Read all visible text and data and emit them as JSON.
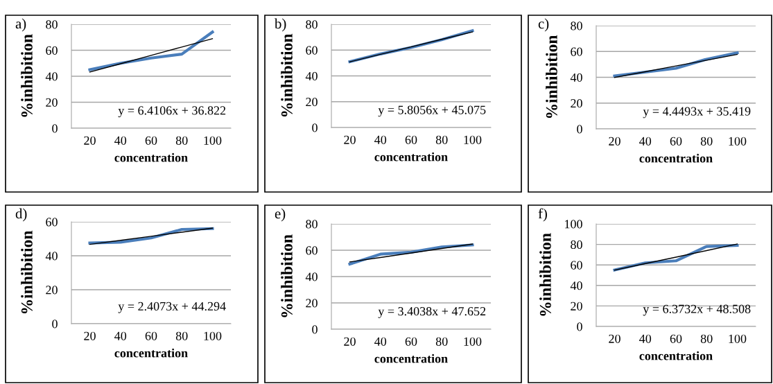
{
  "chart_data": [
    {
      "type": "line",
      "categories": [
        "20",
        "40",
        "60",
        "80",
        "100"
      ],
      "xlabel": "concentration",
      "ylabel": "%inhibition",
      "ylim": [
        0,
        80
      ],
      "yticks": [
        0,
        20,
        40,
        60,
        80
      ],
      "grid": "y",
      "annotations": [
        "a)",
        "y = 6.4106x + 36.822"
      ],
      "series": [
        {
          "color": "#4a7ebb",
          "values": [
            45,
            50,
            54,
            57,
            74
          ]
        },
        {
          "color": "#000000",
          "values": [
            43.2,
            49.6,
            56.1,
            62.5,
            68.9
          ]
        }
      ]
    },
    {
      "type": "line",
      "categories": [
        "20",
        "40",
        "60",
        "80",
        "100"
      ],
      "xlabel": "concentration",
      "ylabel": "%inhibition",
      "ylim": [
        0,
        80
      ],
      "yticks": [
        0,
        20,
        40,
        60,
        80
      ],
      "grid": "y",
      "annotations": [
        "b)",
        "y = 5.8056x + 45.075"
      ],
      "series": [
        {
          "color": "#4a7ebb",
          "values": [
            51,
            57,
            62,
            68,
            75
          ]
        },
        {
          "color": "#000000",
          "values": [
            50.9,
            56.7,
            62.5,
            68.3,
            74.1
          ]
        }
      ]
    },
    {
      "type": "line",
      "categories": [
        "20",
        "40",
        "60",
        "80",
        "100"
      ],
      "xlabel": "concentration",
      "ylabel": "%inhibition",
      "ylim": [
        0,
        80
      ],
      "yticks": [
        0,
        20,
        40,
        60,
        80
      ],
      "grid": "y",
      "annotations": [
        "c)",
        "y = 4.4493x + 35.419"
      ],
      "series": [
        {
          "color": "#4a7ebb",
          "values": [
            41,
            44,
            47,
            54,
            59
          ]
        },
        {
          "color": "#000000",
          "values": [
            39.9,
            44.3,
            48.8,
            53.2,
            57.7
          ]
        }
      ]
    },
    {
      "type": "line",
      "categories": [
        "20",
        "40",
        "60",
        "80",
        "100"
      ],
      "xlabel": "concentration",
      "ylabel": "%inhibition",
      "ylim": [
        0,
        60
      ],
      "yticks": [
        0,
        20,
        40,
        60
      ],
      "grid": "y",
      "annotations": [
        "d)",
        "y = 2.4073x + 44.294"
      ],
      "series": [
        {
          "color": "#4a7ebb",
          "values": [
            47.5,
            48,
            50.5,
            55.5,
            56
          ]
        },
        {
          "color": "#000000",
          "values": [
            46.7,
            49.1,
            51.5,
            53.9,
            56.3
          ]
        }
      ]
    },
    {
      "type": "line",
      "categories": [
        "20",
        "40",
        "60",
        "80",
        "100"
      ],
      "xlabel": "concentration",
      "ylabel": "%inhibition",
      "ylim": [
        0,
        80
      ],
      "yticks": [
        0,
        20,
        40,
        60,
        80
      ],
      "grid": "y",
      "annotations": [
        "e)",
        "y = 3.4038x + 47.652"
      ],
      "series": [
        {
          "color": "#4a7ebb",
          "values": [
            49.5,
            57,
            58.5,
            62.5,
            64
          ]
        },
        {
          "color": "#000000",
          "values": [
            51.1,
            54.5,
            57.9,
            61.3,
            64.7
          ]
        }
      ]
    },
    {
      "type": "line",
      "categories": [
        "20",
        "40",
        "60",
        "80",
        "100"
      ],
      "xlabel": "concentration",
      "ylabel": "%inhibition",
      "ylim": [
        0,
        100
      ],
      "yticks": [
        0,
        20,
        40,
        60,
        80,
        100
      ],
      "grid": "y",
      "annotations": [
        "f)",
        "y = 6.3732x + 48.508"
      ],
      "series": [
        {
          "color": "#4a7ebb",
          "values": [
            55,
            62,
            64,
            78,
            79
          ]
        },
        {
          "color": "#000000",
          "values": [
            54.9,
            61.3,
            67.6,
            74.0,
            80.4
          ]
        }
      ]
    }
  ]
}
